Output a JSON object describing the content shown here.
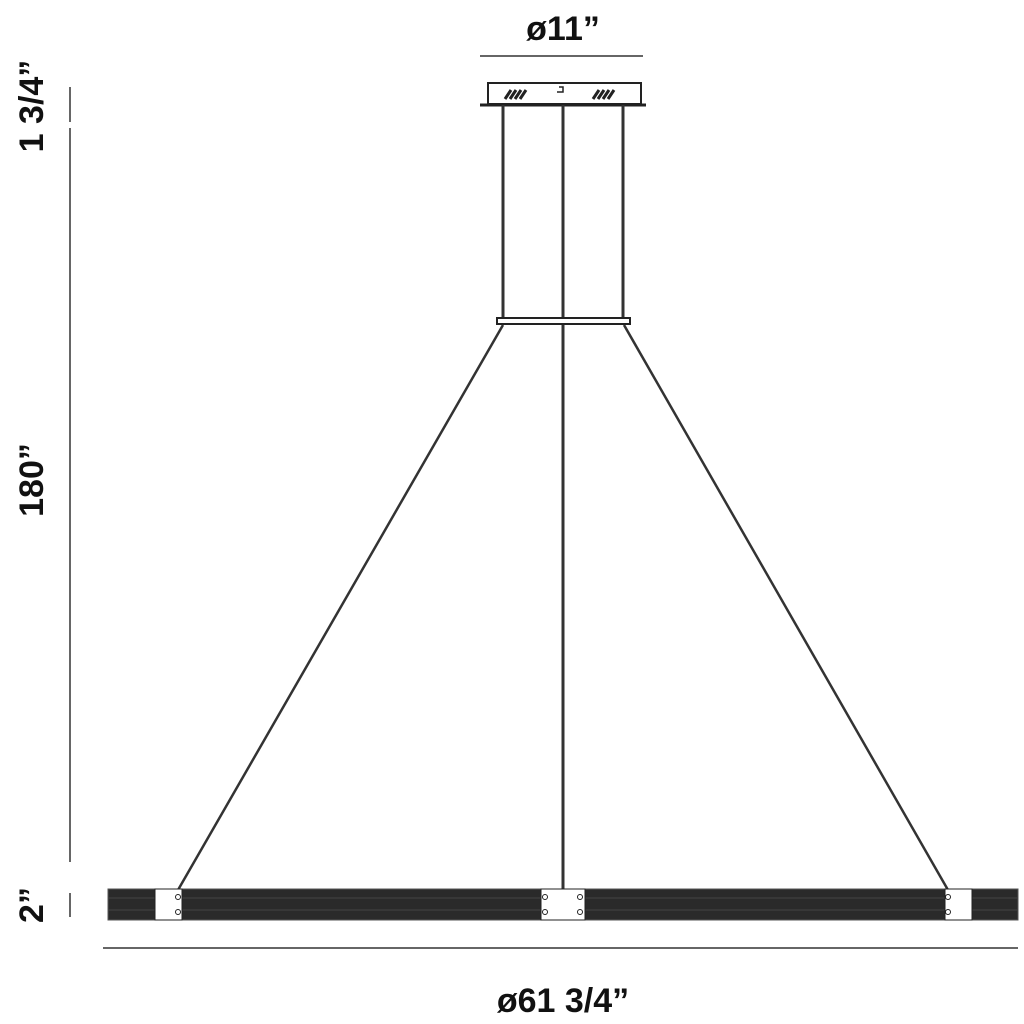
{
  "dimensions": {
    "canopy_diameter": "ø11”",
    "canopy_height": "1 3/4”",
    "overall_drop": "180”",
    "fixture_height": "2”",
    "fixture_diameter": "ø61 3/4”"
  },
  "colors": {
    "line": "#222222",
    "fixture_body": "#2a2a2a",
    "background": "#ffffff"
  }
}
